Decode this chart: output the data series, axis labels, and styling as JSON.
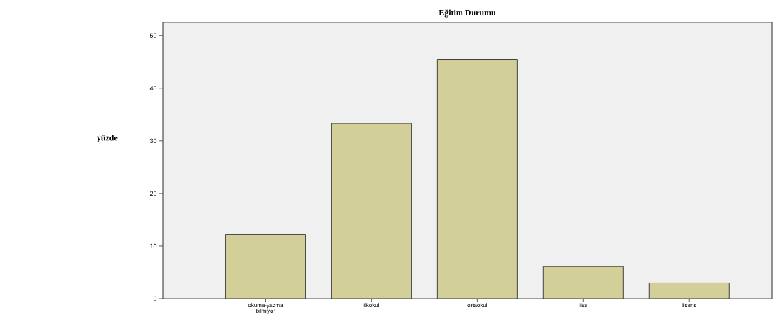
{
  "chart_data": {
    "type": "bar",
    "title": "Eğitim Durumu",
    "ylabel": "yüzde",
    "categories": [
      "okuma-yazma bilmiyor",
      "ilkokul",
      "ortaokul",
      "lise",
      "lisans"
    ],
    "values": [
      12.2,
      33.3,
      45.5,
      6.1,
      3.0
    ],
    "color": "#d3cf98",
    "ylim": [
      0,
      52.5
    ],
    "yticks": [
      0,
      10,
      20,
      30,
      40,
      50
    ],
    "grid": false
  }
}
